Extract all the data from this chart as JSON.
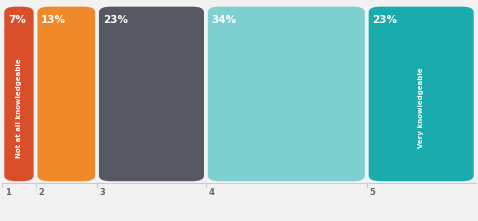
{
  "categories": [
    "1",
    "2",
    "3",
    "4",
    "5"
  ],
  "values": [
    7,
    13,
    23,
    34,
    23
  ],
  "labels": [
    "7%",
    "13%",
    "23%",
    "34%",
    "23%"
  ],
  "colors": [
    "#d94f2b",
    "#f0892a",
    "#555860",
    "#7ecfcf",
    "#1aacac"
  ],
  "left_label": "Not at all knowledgeable",
  "right_label": "Very knowledgeable",
  "background_color": "#f2f2f2",
  "text_color": "#ffffff",
  "tick_numbers": [
    "1",
    "2",
    "3",
    "4",
    "5"
  ],
  "bar_gap": 0.008,
  "tick_line_color": "#cccccc",
  "tick_text_color": "#666666"
}
